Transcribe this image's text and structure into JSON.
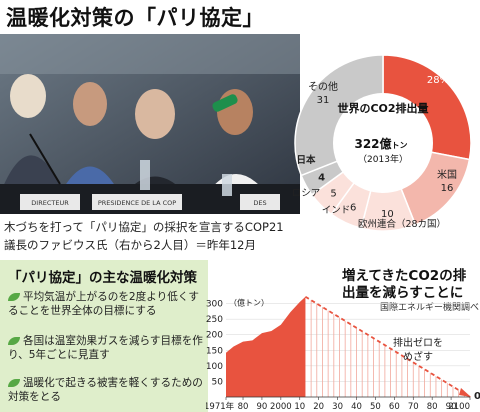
{
  "headline": "温暖化対策の「パリ協定」",
  "photo": {
    "caption": "木づちを打って「パリ協定」の採択を宣言するCOP21議長のファビウス氏（右から2人目）＝昨年12月",
    "desk_signs": [
      "DIRECTEUR",
      "PRESIDENCE DE LA COP",
      "DES"
    ]
  },
  "measures": {
    "title": "「パリ協定」の主な温暖化対策",
    "items": [
      "平均気温が上がるのを2度より低くすることを世界全体の目標にする",
      "各国は温室効果ガスを減らす目標を作り、5年ごとに見直す",
      "温暖化で起きる被害を軽くするための対策をとる"
    ]
  },
  "colors": {
    "red": "#e8533f",
    "pink": "#f3b7ac",
    "light_pink": "#fbe1db",
    "gray": "#c9c9c9",
    "leaf": "#57a845",
    "box_bg": "#dfeecb"
  },
  "chart_data": [
    {
      "type": "pie",
      "center_title": "世界のCO2排出量",
      "total_label": "322億",
      "total_unit": "トン",
      "year_label": "（2013年）",
      "slices": [
        {
          "label": "中国",
          "value": 28,
          "value_text": "28%"
        },
        {
          "label": "米国",
          "value": 16,
          "value_text": "16"
        },
        {
          "label": "欧州連合（28カ国）",
          "value": 10,
          "value_text": "10"
        },
        {
          "label": "インド",
          "value": 6,
          "value_text": "6"
        },
        {
          "label": "ロシア",
          "value": 5,
          "value_text": "5"
        },
        {
          "label": "日本",
          "value": 4,
          "value_text": "4"
        },
        {
          "label": "その他",
          "value": 31,
          "value_text": "31"
        }
      ]
    },
    {
      "type": "area",
      "title": "増えてきたCO2の排出量を減らすことに",
      "source": "国際エネルギー機関調べ",
      "y_unit": "（億トン）",
      "ylim": [
        0,
        350
      ],
      "yticks": [
        0,
        50,
        100,
        150,
        200,
        250,
        300
      ],
      "xlim": [
        1971,
        2100
      ],
      "xtick_labels": [
        "1971年",
        "80",
        "90",
        "2000",
        "10",
        "20",
        "30",
        "40",
        "50",
        "60",
        "70",
        "80",
        "90",
        "2100"
      ],
      "xtick_values": [
        1971,
        1980,
        1990,
        2000,
        2010,
        2020,
        2030,
        2040,
        2050,
        2060,
        2070,
        2080,
        2090,
        2100
      ],
      "historical": {
        "x": [
          1971,
          1975,
          1980,
          1985,
          1990,
          1995,
          2000,
          2005,
          2010,
          2013
        ],
        "y": [
          142,
          162,
          178,
          182,
          205,
          212,
          232,
          272,
          305,
          322
        ]
      },
      "projection": {
        "x": [
          2013,
          2100
        ],
        "y": [
          322,
          0
        ]
      },
      "annotation": "排出ゼロをめざす",
      "end_label": "0"
    }
  ]
}
